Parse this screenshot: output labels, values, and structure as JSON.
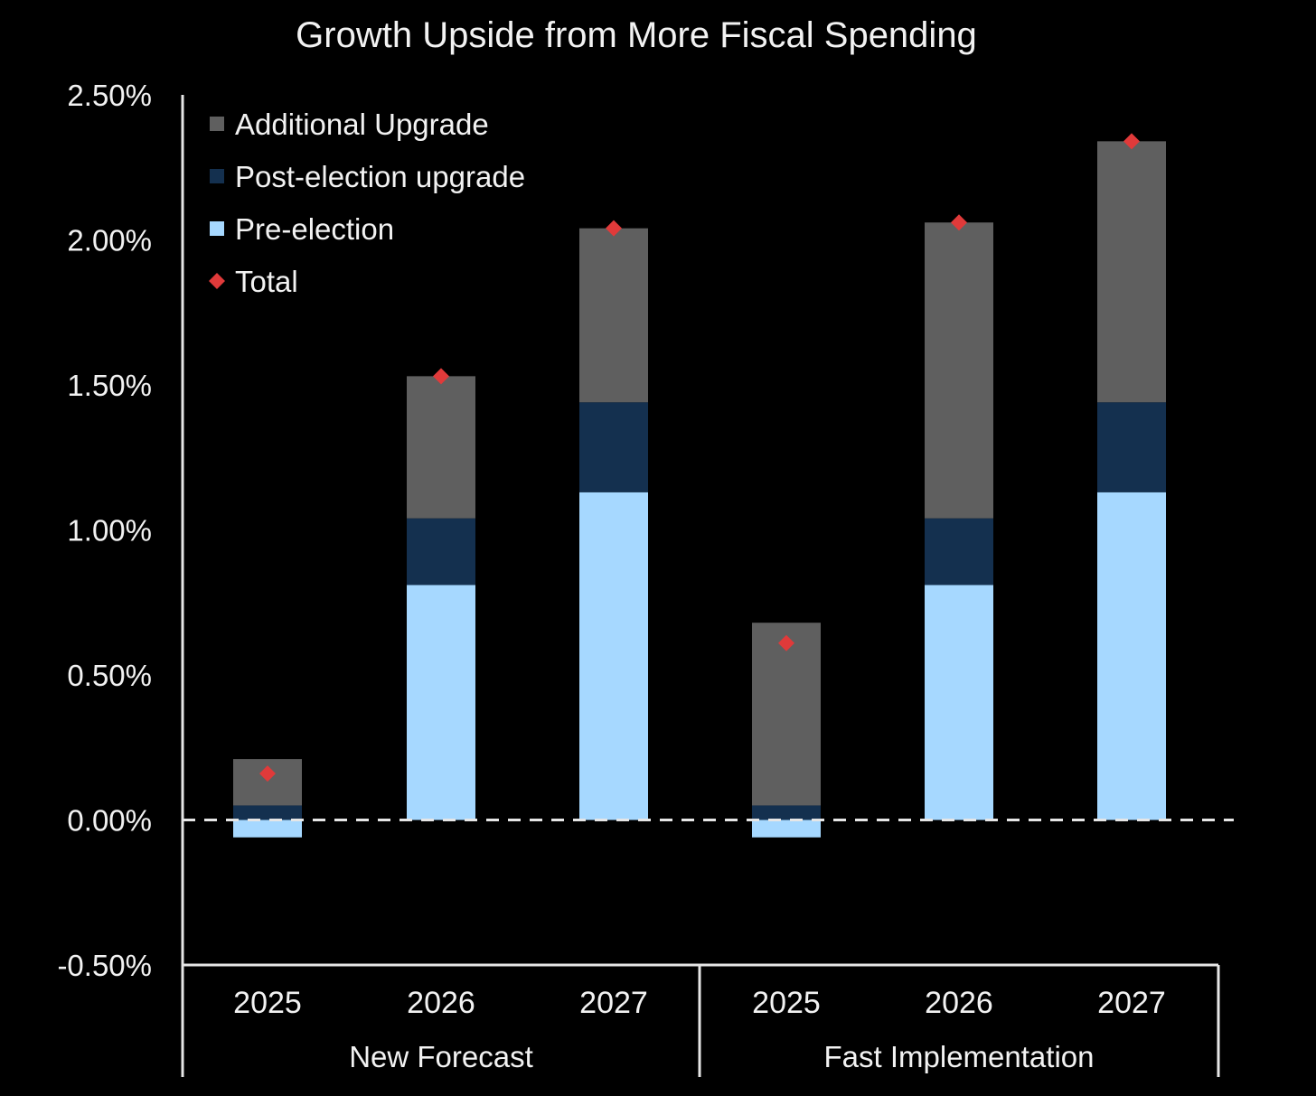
{
  "chart_data": {
    "type": "bar",
    "stacked": true,
    "title": "Growth Upside from More Fiscal Spending",
    "xlabel": "",
    "ylabel": "",
    "ylim": [
      -0.5,
      2.5
    ],
    "yticks": [
      -0.5,
      0.0,
      0.5,
      1.0,
      1.5,
      2.0,
      2.5
    ],
    "ytick_labels": [
      "-0.50%",
      "0.00%",
      "0.50%",
      "1.00%",
      "1.50%",
      "2.00%",
      "2.50%"
    ],
    "zero_line": "dashed",
    "grid": false,
    "legend_position": "top-left",
    "categories": [
      "2025",
      "2026",
      "2027",
      "2025",
      "2026",
      "2027"
    ],
    "groups": [
      {
        "label": "New Forecast",
        "categories": [
          "2025",
          "2026",
          "2027"
        ]
      },
      {
        "label": "Fast Implementation",
        "categories": [
          "2025",
          "2026",
          "2027"
        ]
      }
    ],
    "series": [
      {
        "name": "Pre-election",
        "kind": "bar",
        "color": "#a6d8ff",
        "values": [
          -0.06,
          0.81,
          1.13,
          -0.06,
          0.81,
          1.13
        ]
      },
      {
        "name": "Post-election upgrade",
        "kind": "bar",
        "color": "#14304f",
        "values": [
          0.05,
          0.23,
          0.31,
          0.05,
          0.23,
          0.31
        ]
      },
      {
        "name": "Additional Upgrade",
        "kind": "bar",
        "color": "#5f5f5f",
        "values": [
          0.16,
          0.49,
          0.6,
          0.63,
          1.02,
          0.9
        ]
      },
      {
        "name": "Total",
        "kind": "marker",
        "color": "#e03a3a",
        "values": [
          0.16,
          1.53,
          2.04,
          0.61,
          2.06,
          2.34
        ]
      }
    ],
    "legend_order": [
      "Additional Upgrade",
      "Post-election upgrade",
      "Pre-election",
      "Total"
    ]
  }
}
